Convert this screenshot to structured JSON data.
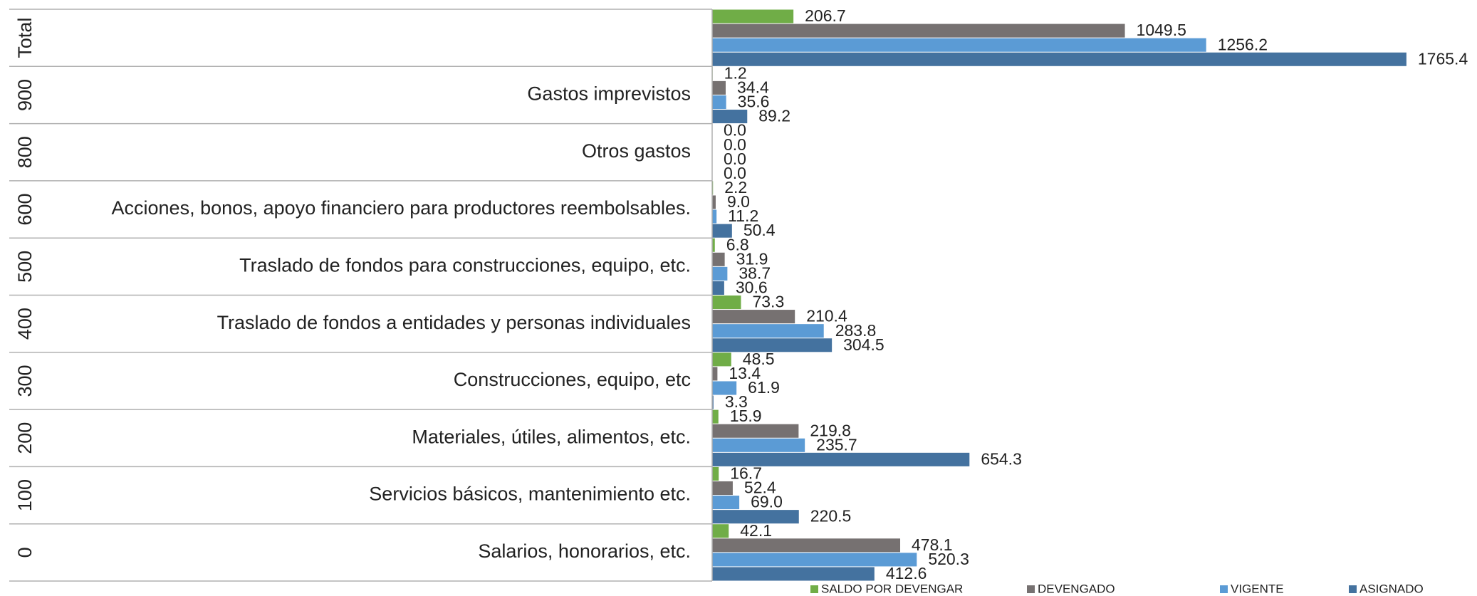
{
  "chart_data": {
    "type": "bar",
    "orientation": "horizontal",
    "groups": [
      "Total",
      "900",
      "800",
      "600",
      "500",
      "400",
      "300",
      "200",
      "100",
      "0"
    ],
    "categories": [
      null,
      "Gastos imprevistos",
      "Otros gastos",
      "Acciones, bonos, apoyo financiero para productores reembolsables.",
      "Traslado de fondos para construcciones, equipo, etc.",
      "Traslado de fondos a entidades  y personas individuales",
      "Construcciones, equipo, etc",
      "Materiales, útiles, alimentos, etc.",
      "Servicios básicos, mantenimiento etc.",
      "Salarios, honorarios, etc."
    ],
    "series": [
      {
        "name": "SALDO POR DEVENGAR",
        "color": "#70ad47",
        "values": [
          206.7,
          1.2,
          0,
          2.2,
          6.8,
          73.3,
          48.5,
          15.9,
          16.7,
          42.1
        ],
        "value_labels": [
          "206.7",
          "1.2",
          "0.0",
          "2.2",
          "6.8",
          "73.3",
          "48.5",
          "15.9",
          "16.7",
          "42.1"
        ]
      },
      {
        "name": "DEVENGADO",
        "color": "#767171",
        "values": [
          1049.5,
          34.4,
          0,
          9,
          31.9,
          210.4,
          13.4,
          219.8,
          52.4,
          478.1
        ],
        "value_labels": [
          "1049.5",
          "34.4",
          "0.0",
          "9.0",
          "31.9",
          "210.4",
          "13.4",
          "219.8",
          "52.4",
          "478.1"
        ]
      },
      {
        "name": "VIGENTE",
        "color": "#5b9bd5",
        "values": [
          1256.2,
          35.6,
          0,
          11.2,
          38.7,
          283.8,
          61.9,
          235.7,
          69,
          520.3
        ],
        "value_labels": [
          "1256.2",
          "35.6",
          "0.0",
          "11.2",
          "38.7",
          "283.8",
          "61.9",
          "235.7",
          "69.0",
          "520.3"
        ]
      },
      {
        "name": "ASIGNADO",
        "color": "#44729f",
        "values": [
          1765.4,
          89.2,
          0,
          50.4,
          30.6,
          304.5,
          3.3,
          654.3,
          220.5,
          412.6
        ],
        "value_labels": [
          "1765.4",
          "89.2",
          "0.0",
          "50.4",
          "30.6",
          "304.5",
          "3.3",
          "654.3",
          "220.5",
          "412.6"
        ]
      }
    ],
    "xlim": [
      0,
      1800
    ],
    "legend": "bottom"
  }
}
